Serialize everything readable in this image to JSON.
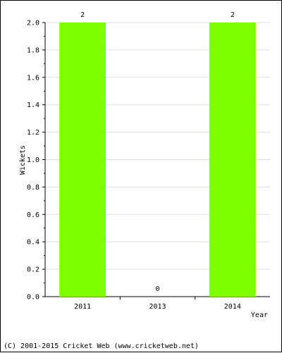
{
  "chart_data": {
    "type": "bar",
    "categories": [
      "2011",
      "2013",
      "2014"
    ],
    "values": [
      2,
      0,
      2
    ],
    "data_labels": [
      "2",
      "0",
      "2"
    ],
    "xlabel": "Year",
    "ylabel": "Wickets",
    "ylim": [
      0,
      2.0
    ],
    "yticks": [
      "0.0",
      "0.2",
      "0.4",
      "0.6",
      "0.8",
      "1.0",
      "1.2",
      "1.4",
      "1.6",
      "1.8",
      "2.0"
    ],
    "grid": true,
    "bar_color": "#80ff00"
  },
  "footer": "(C) 2001-2015 Cricket Web (www.cricketweb.net)"
}
